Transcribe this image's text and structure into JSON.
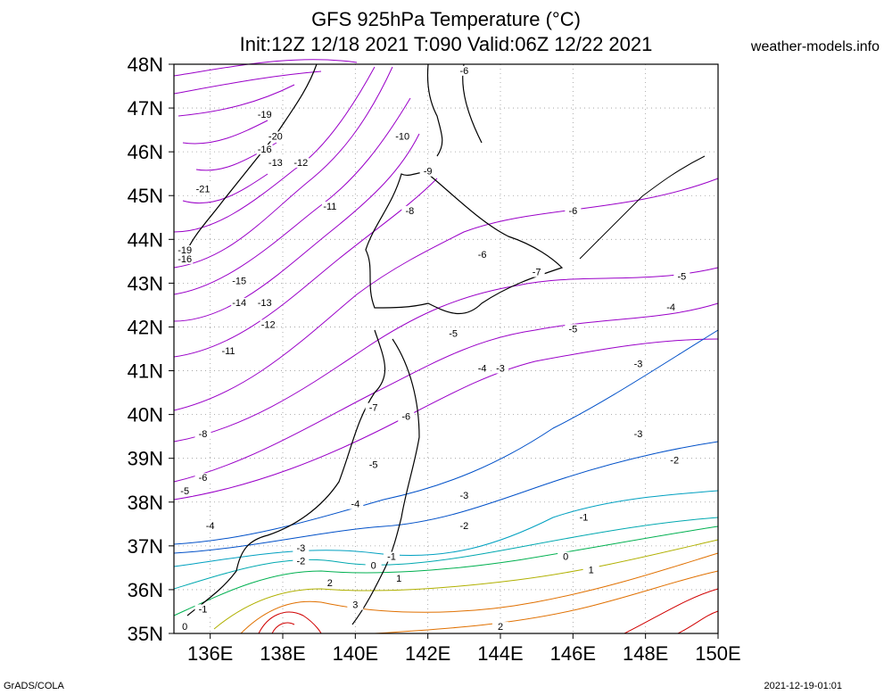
{
  "header": {
    "title_line1": "GFS 925hPa Temperature (°C)",
    "title_line2": "Init:12Z 12/18 2021 T:090 Valid:06Z 12/22 2021",
    "site": "weather-models.info"
  },
  "footer": {
    "left": "GrADS/COLA",
    "right": "2021-12-19-01:01"
  },
  "axes": {
    "lat_labels": [
      "48N",
      "47N",
      "46N",
      "45N",
      "44N",
      "43N",
      "42N",
      "41N",
      "40N",
      "39N",
      "38N",
      "37N",
      "36N",
      "35N"
    ],
    "lon_labels": [
      "136E",
      "138E",
      "140E",
      "142E",
      "144E",
      "146E",
      "148E",
      "150E"
    ],
    "lat_range": [
      35,
      48
    ],
    "lon_range": [
      135,
      150
    ]
  },
  "chart_data": {
    "type": "map-contour",
    "variable": "925hPa Temperature",
    "units": "°C",
    "contour_labels": [
      {
        "text": "-6",
        "lon": 143.0,
        "lat": 47.8
      },
      {
        "text": "-19",
        "lon": 137.5,
        "lat": 46.8
      },
      {
        "text": "-20",
        "lon": 137.8,
        "lat": 46.3
      },
      {
        "text": "-10",
        "lon": 141.3,
        "lat": 46.3
      },
      {
        "text": "-16",
        "lon": 137.5,
        "lat": 46.0
      },
      {
        "text": "-13",
        "lon": 137.8,
        "lat": 45.7
      },
      {
        "text": "-12",
        "lon": 138.5,
        "lat": 45.7
      },
      {
        "text": "-9",
        "lon": 142.0,
        "lat": 45.5
      },
      {
        "text": "-21",
        "lon": 135.8,
        "lat": 45.1
      },
      {
        "text": "-11",
        "lon": 139.3,
        "lat": 44.7
      },
      {
        "text": "-8",
        "lon": 141.5,
        "lat": 44.6
      },
      {
        "text": "-6",
        "lon": 146.0,
        "lat": 44.6
      },
      {
        "text": "-19",
        "lon": 135.3,
        "lat": 43.7
      },
      {
        "text": "-16",
        "lon": 135.3,
        "lat": 43.5
      },
      {
        "text": "-6",
        "lon": 143.5,
        "lat": 43.6
      },
      {
        "text": "-7",
        "lon": 145.0,
        "lat": 43.2
      },
      {
        "text": "-5",
        "lon": 149.0,
        "lat": 43.1
      },
      {
        "text": "-15",
        "lon": 136.8,
        "lat": 43.0
      },
      {
        "text": "-14",
        "lon": 136.8,
        "lat": 42.5
      },
      {
        "text": "-13",
        "lon": 137.5,
        "lat": 42.5
      },
      {
        "text": "-4",
        "lon": 148.7,
        "lat": 42.4
      },
      {
        "text": "-12",
        "lon": 137.6,
        "lat": 42.0
      },
      {
        "text": "-5",
        "lon": 142.7,
        "lat": 41.8
      },
      {
        "text": "-5",
        "lon": 146.0,
        "lat": 41.9
      },
      {
        "text": "-11",
        "lon": 136.5,
        "lat": 41.4
      },
      {
        "text": "-3",
        "lon": 147.8,
        "lat": 41.1
      },
      {
        "text": "-4",
        "lon": 143.5,
        "lat": 41.0
      },
      {
        "text": "-3",
        "lon": 144.0,
        "lat": 41.0
      },
      {
        "text": "-7",
        "lon": 140.5,
        "lat": 40.1
      },
      {
        "text": "-6",
        "lon": 141.4,
        "lat": 39.9
      },
      {
        "text": "-8",
        "lon": 135.8,
        "lat": 39.5
      },
      {
        "text": "-3",
        "lon": 147.8,
        "lat": 39.5
      },
      {
        "text": "-5",
        "lon": 140.5,
        "lat": 38.8
      },
      {
        "text": "-2",
        "lon": 148.8,
        "lat": 38.9
      },
      {
        "text": "-6",
        "lon": 135.8,
        "lat": 38.5
      },
      {
        "text": "-5",
        "lon": 135.3,
        "lat": 38.2
      },
      {
        "text": "-3",
        "lon": 143.0,
        "lat": 38.1
      },
      {
        "text": "-4",
        "lon": 140.0,
        "lat": 37.9
      },
      {
        "text": "-1",
        "lon": 146.3,
        "lat": 37.6
      },
      {
        "text": "-4",
        "lon": 136.0,
        "lat": 37.4
      },
      {
        "text": "-2",
        "lon": 143.0,
        "lat": 37.4
      },
      {
        "text": "-3",
        "lon": 138.5,
        "lat": 36.9
      },
      {
        "text": "-1",
        "lon": 141.0,
        "lat": 36.7
      },
      {
        "text": "-2",
        "lon": 138.5,
        "lat": 36.6
      },
      {
        "text": "0",
        "lon": 145.8,
        "lat": 36.7
      },
      {
        "text": "0",
        "lon": 140.5,
        "lat": 36.5
      },
      {
        "text": "1",
        "lon": 146.5,
        "lat": 36.4
      },
      {
        "text": "1",
        "lon": 141.2,
        "lat": 36.2
      },
      {
        "text": "2",
        "lon": 139.3,
        "lat": 36.1
      },
      {
        "text": "-1",
        "lon": 135.8,
        "lat": 35.5
      },
      {
        "text": "3",
        "lon": 140.0,
        "lat": 35.6
      },
      {
        "text": "0",
        "lon": 135.3,
        "lat": 35.1
      },
      {
        "text": "2",
        "lon": 144.0,
        "lat": 35.1
      }
    ]
  },
  "colors": {
    "frame": "#000000",
    "grid": "#999999",
    "coast": "#000000",
    "cold": "#8800cc",
    "cool": "#0050c8",
    "mild": "#00a0c0",
    "neutral": "#00b050",
    "warm": "#c0c000",
    "hot": "#e06000",
    "hottest": "#d00000"
  }
}
